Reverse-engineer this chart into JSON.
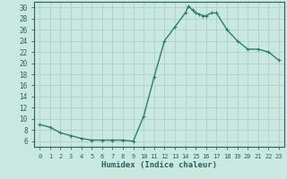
{
  "x": [
    0,
    1,
    2,
    3,
    4,
    5,
    6,
    7,
    8,
    9,
    10,
    11,
    12,
    13,
    14,
    14.3,
    14.7,
    15,
    15.3,
    15.7,
    16,
    16.5,
    17,
    18,
    19,
    20,
    21,
    22,
    23
  ],
  "y": [
    9.0,
    8.5,
    7.5,
    7.0,
    6.5,
    6.2,
    6.2,
    6.2,
    6.2,
    6.0,
    10.5,
    17.5,
    24.0,
    26.5,
    29.0,
    30.2,
    29.5,
    29.0,
    28.8,
    28.5,
    28.5,
    29.0,
    29.0,
    26.0,
    24.0,
    22.5,
    22.5,
    22.0,
    20.5
  ],
  "line_color": "#2e7d70",
  "marker": "+",
  "bg_color": "#c8e8e0",
  "grid_color": "#b0d0cc",
  "grid_color_minor": "#c0ddd8",
  "xlabel": "Humidex (Indice chaleur)",
  "xlim": [
    -0.5,
    23.5
  ],
  "ylim": [
    5,
    31
  ],
  "yticks": [
    6,
    8,
    10,
    12,
    14,
    16,
    18,
    20,
    22,
    24,
    26,
    28,
    30
  ],
  "xticks": [
    0,
    1,
    2,
    3,
    4,
    5,
    6,
    7,
    8,
    9,
    10,
    11,
    12,
    13,
    14,
    15,
    16,
    17,
    18,
    19,
    20,
    21,
    22,
    23
  ],
  "tick_color": "#2e6060",
  "xlabel_fontsize": 6.5,
  "tick_fontsize_x": 5.0,
  "tick_fontsize_y": 5.5,
  "axis_color": "#2e6060",
  "linewidth": 1.0,
  "markersize": 3.5
}
